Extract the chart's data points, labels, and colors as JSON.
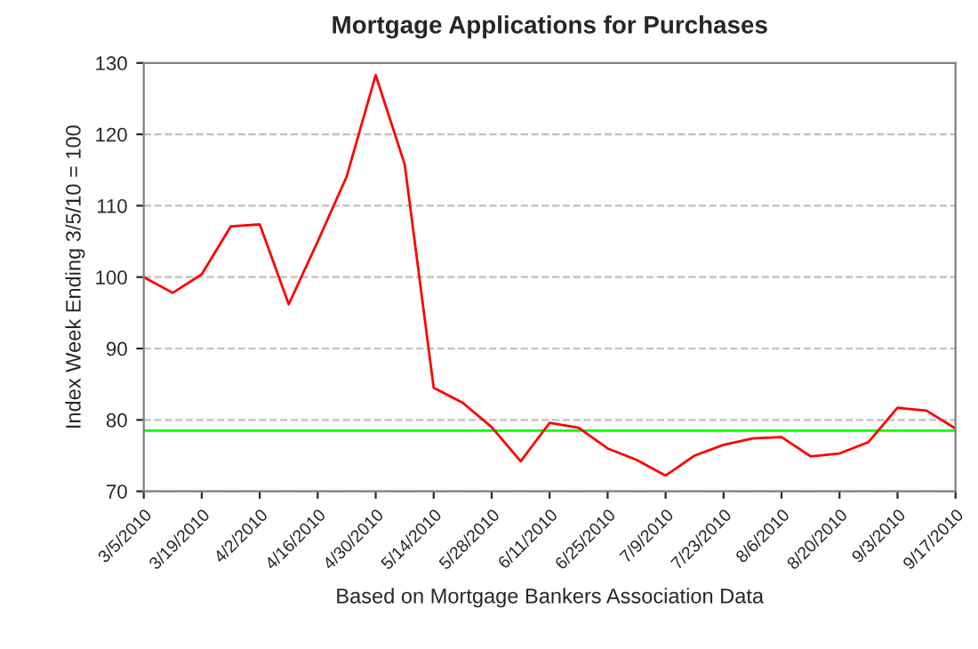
{
  "chart_data": {
    "type": "line",
    "title": "Mortgage Applications for Purchases",
    "ylabel": "Index Week Ending 3/5/10 = 100",
    "xlabel": "Based on Mortgage Bankers Association Data",
    "categories": [
      "3/5/2010",
      null,
      "3/19/2010",
      null,
      "4/2/2010",
      null,
      "4/16/2010",
      null,
      "4/30/2010",
      null,
      "5/14/2010",
      null,
      "5/28/2010",
      null,
      "6/11/2010",
      null,
      "6/25/2010",
      null,
      "7/9/2010",
      null,
      "7/23/2010",
      null,
      "8/6/2010",
      null,
      "8/20/2010",
      null,
      "9/3/2010",
      null,
      "9/17/2010"
    ],
    "series": [
      {
        "color": "#ff0000",
        "values": [
          100,
          97.8,
          100.4,
          107.1,
          107.4,
          96.2,
          105,
          114.1,
          128.3,
          115.8,
          84.5,
          82.4,
          79,
          74.2,
          79.6,
          78.9,
          76,
          74.4,
          72.2,
          75,
          76.5,
          77.4,
          77.6,
          74.9,
          75.3,
          76.9,
          81.7,
          81.3,
          78.8
        ]
      }
    ],
    "ylim": [
      70,
      130
    ],
    "yticks": [
      70,
      80,
      90,
      100,
      110,
      120,
      130
    ],
    "grid": "y",
    "legend": false,
    "marker": "none",
    "line_style": "solid",
    "ref_lines": [
      {
        "axis": "y",
        "value": 78.5,
        "color": "#00ff00",
        "line_style": "solid"
      }
    ]
  }
}
